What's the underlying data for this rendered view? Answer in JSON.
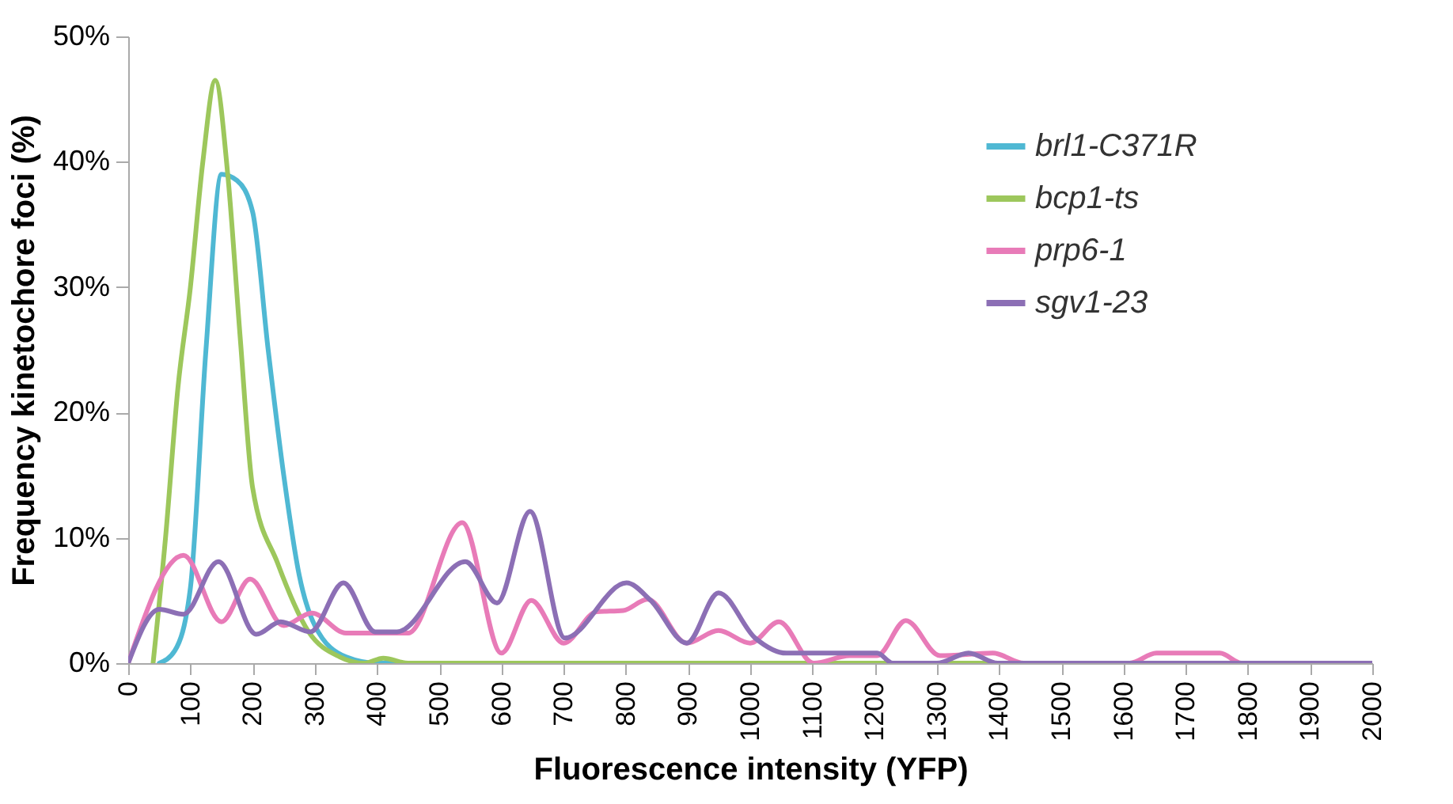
{
  "chart_data": {
    "type": "line",
    "xlabel": "Fluorescence intensity (YFP)",
    "ylabel": "Frequency kinetochore foci (%)",
    "xlim": [
      0,
      2000
    ],
    "xticks": [
      0,
      100,
      200,
      300,
      400,
      500,
      600,
      700,
      800,
      900,
      1000,
      1100,
      1200,
      1300,
      1400,
      1500,
      1600,
      1700,
      1800,
      1900,
      2000
    ],
    "ylim": [
      0,
      50
    ],
    "yticks": [
      {
        "value": 0,
        "label": "0%"
      },
      {
        "value": 10,
        "label": "10%"
      },
      {
        "value": 20,
        "label": "20%"
      },
      {
        "value": 30,
        "label": "30%"
      },
      {
        "value": 40,
        "label": "40%"
      },
      {
        "value": 50,
        "label": "50%"
      }
    ],
    "grid": false,
    "legend": "top right",
    "marker": "none",
    "line_style": "solid",
    "series": [
      {
        "name": "brl1-C371R",
        "color": "#4fb8d3",
        "x": [
          50,
          75,
          100,
          125,
          150,
          175,
          200,
          225,
          250,
          275,
          300,
          350,
          400,
          2000
        ],
        "values": [
          0,
          1,
          6,
          25,
          39,
          38.5,
          36,
          25,
          15,
          7,
          3,
          0.5,
          0,
          0
        ]
      },
      {
        "name": "bcp1-ts",
        "color": "#9dc75c",
        "x": [
          40,
          60,
          80,
          100,
          120,
          140,
          160,
          180,
          200,
          240,
          290,
          340,
          380,
          410,
          450,
          2000
        ],
        "values": [
          0,
          10,
          22,
          30,
          40,
          46.5,
          39,
          26,
          14,
          8,
          2.5,
          0.5,
          0,
          0.4,
          0,
          0
        ]
      },
      {
        "name": "prp6-1",
        "color": "#e87bb8",
        "x": [
          0,
          89,
          150,
          196,
          250,
          295,
          350,
          450,
          537,
          600,
          648,
          700,
          753,
          796,
          835,
          898,
          949,
          1000,
          1046,
          1102,
          1160,
          1204,
          1250,
          1305,
          1390,
          1440,
          1610,
          1653,
          1755,
          1790,
          2000
        ],
        "values": [
          0,
          8.6,
          3.3,
          6.7,
          3,
          4,
          2.4,
          2.4,
          11.2,
          0.8,
          5,
          1.6,
          4.1,
          4.2,
          5.1,
          1.6,
          2.6,
          1.6,
          3.3,
          0,
          0.6,
          0.6,
          3.4,
          0.6,
          0.8,
          0,
          0,
          0.8,
          0.8,
          0,
          0
        ]
      },
      {
        "name": "sgv1-23",
        "color": "#8c6fb5",
        "x": [
          0,
          50,
          89,
          145,
          206,
          245,
          293,
          346,
          397,
          432,
          542,
          593,
          646,
          702,
          801,
          840,
          898,
          949,
          1008,
          1058,
          1204,
          1229,
          1300,
          1351,
          1398,
          2000
        ],
        "values": [
          0,
          4.3,
          3.9,
          8.1,
          2.3,
          3.3,
          2.5,
          6.4,
          2.5,
          2.5,
          8.1,
          4.8,
          12.1,
          2,
          6.4,
          5,
          1.6,
          5.6,
          2,
          0.8,
          0.8,
          0,
          0,
          0.8,
          0,
          0
        ]
      }
    ]
  }
}
